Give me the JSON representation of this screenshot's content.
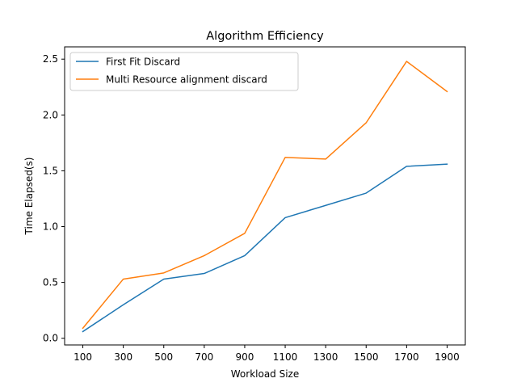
{
  "chart_data": {
    "type": "line",
    "title": "Algorithm Efficiency",
    "xlabel": "Workload Size",
    "ylabel": "Time Elapsed(s)",
    "x": [
      100,
      300,
      500,
      700,
      900,
      1100,
      1300,
      1500,
      1700,
      1900
    ],
    "xticks": [
      "100",
      "300",
      "500",
      "700",
      "900",
      "1100",
      "1300",
      "1500",
      "1700",
      "1900"
    ],
    "yticks": [
      "0.0",
      "0.5",
      "1.0",
      "1.5",
      "2.0",
      "2.5"
    ],
    "ytick_values": [
      0.0,
      0.5,
      1.0,
      1.5,
      2.0,
      2.5
    ],
    "xlim": [
      10,
      1990
    ],
    "ylim": [
      -0.06,
      2.61
    ],
    "grid": false,
    "legend_position": "upper left",
    "series": [
      {
        "name": "First Fit Discard",
        "color": "#1f77b4",
        "values": [
          0.06,
          0.3,
          0.53,
          0.58,
          0.74,
          1.08,
          1.19,
          1.3,
          1.54,
          1.56
        ]
      },
      {
        "name": "Multi Resource alignment discard",
        "color": "#ff7f0e",
        "values": [
          0.09,
          0.53,
          0.585,
          0.74,
          0.94,
          1.62,
          1.605,
          1.93,
          2.48,
          2.21
        ]
      }
    ]
  }
}
